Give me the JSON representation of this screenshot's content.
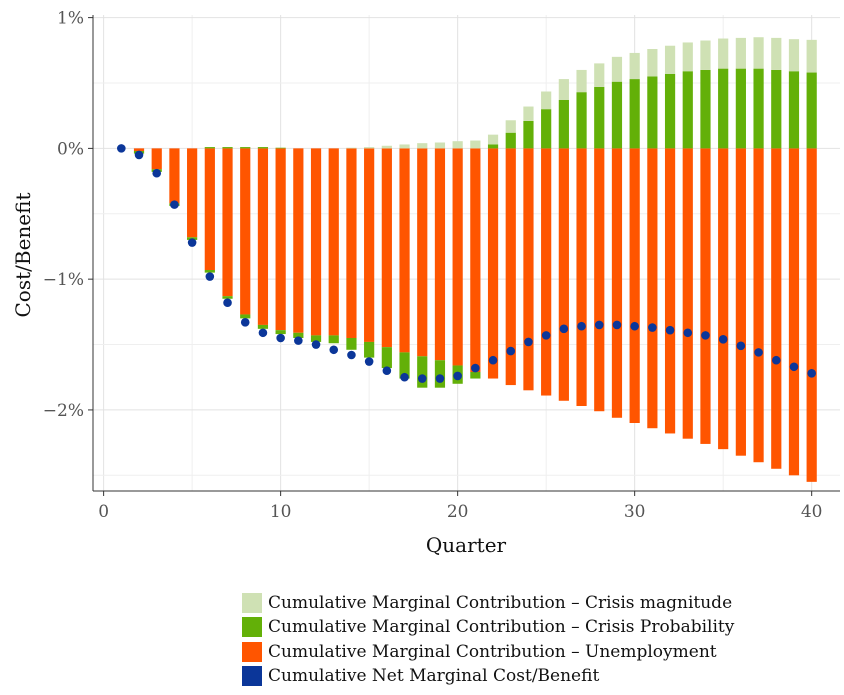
{
  "chart_data": {
    "type": "bar",
    "stacked": true,
    "title": "",
    "xlabel": "Quarter",
    "ylabel": "Cost/Benefit",
    "xlim": [
      -0.6,
      41.6
    ],
    "ylim": [
      -2.62,
      1.02
    ],
    "x_ticks": [
      0,
      10,
      20,
      30,
      40
    ],
    "y_ticks": [
      1,
      0,
      -1,
      -2
    ],
    "y_tick_labels": [
      "1%",
      "0%",
      "−1%",
      "−2%"
    ],
    "grid": true,
    "legend_position": "bottom",
    "x": [
      1,
      2,
      3,
      4,
      5,
      6,
      7,
      8,
      9,
      10,
      11,
      12,
      13,
      14,
      15,
      16,
      17,
      18,
      19,
      20,
      21,
      22,
      23,
      24,
      25,
      26,
      27,
      28,
      29,
      30,
      31,
      32,
      33,
      34,
      35,
      36,
      37,
      38,
      39,
      40
    ],
    "series": [
      {
        "name": "Cumulative Marginal Contribution – Crisis magnitude",
        "color": "#cfe1b4",
        "kind": "bar",
        "values": [
          0,
          0,
          0,
          0,
          0,
          0,
          0,
          0,
          0,
          0,
          0,
          0,
          0,
          0.005,
          0.01,
          0.02,
          0.03,
          0.04,
          0.045,
          0.055,
          0.06,
          0.075,
          0.095,
          0.11,
          0.135,
          0.16,
          0.17,
          0.18,
          0.19,
          0.2,
          0.21,
          0.215,
          0.22,
          0.225,
          0.23,
          0.235,
          0.24,
          0.245,
          0.245,
          0.25
        ]
      },
      {
        "name": "Cumulative Marginal Contribution – Crisis Probability",
        "color": "#63b008",
        "kind": "bar",
        "posValues": [
          0,
          0,
          0,
          0,
          0,
          0.01,
          0.01,
          0.01,
          0.01,
          0.005,
          0,
          0,
          0,
          0,
          0,
          0,
          0,
          0,
          0,
          0,
          0,
          0.03,
          0.12,
          0.21,
          0.3,
          0.37,
          0.43,
          0.47,
          0.51,
          0.53,
          0.55,
          0.57,
          0.59,
          0.6,
          0.61,
          0.61,
          0.61,
          0.6,
          0.59,
          0.58
        ],
        "negValues": [
          0,
          -0.02,
          -0.02,
          -0.02,
          -0.02,
          -0.02,
          -0.02,
          -0.03,
          -0.03,
          -0.03,
          -0.04,
          -0.05,
          -0.06,
          -0.09,
          -0.12,
          -0.16,
          -0.2,
          -0.24,
          -0.21,
          -0.14,
          -0.05,
          0,
          0,
          0,
          0,
          0,
          0,
          0,
          0,
          0,
          0,
          0,
          0,
          0,
          0,
          0,
          0,
          0,
          0,
          0
        ]
      },
      {
        "name": "Cumulative Marginal Contribution – Unemployment",
        "color": "#ff5500",
        "kind": "bar",
        "values": [
          0,
          -0.02,
          -0.16,
          -0.42,
          -0.68,
          -0.93,
          -1.13,
          -1.27,
          -1.35,
          -1.39,
          -1.41,
          -1.43,
          -1.43,
          -1.45,
          -1.48,
          -1.52,
          -1.56,
          -1.59,
          -1.62,
          -1.66,
          -1.71,
          -1.76,
          -1.81,
          -1.85,
          -1.89,
          -1.93,
          -1.97,
          -2.01,
          -2.06,
          -2.1,
          -2.14,
          -2.18,
          -2.22,
          -2.26,
          -2.3,
          -2.35,
          -2.4,
          -2.45,
          -2.5,
          -2.55
        ]
      },
      {
        "name": "Cumulative Net Marginal Cost/Benefit",
        "color": "#0b3699",
        "kind": "point",
        "values": [
          0,
          -0.05,
          -0.19,
          -0.43,
          -0.72,
          -0.98,
          -1.18,
          -1.33,
          -1.41,
          -1.45,
          -1.47,
          -1.5,
          -1.54,
          -1.58,
          -1.63,
          -1.7,
          -1.75,
          -1.76,
          -1.76,
          -1.74,
          -1.68,
          -1.62,
          -1.55,
          -1.48,
          -1.43,
          -1.38,
          -1.36,
          -1.35,
          -1.35,
          -1.36,
          -1.37,
          -1.39,
          -1.41,
          -1.43,
          -1.46,
          -1.51,
          -1.56,
          -1.62,
          -1.67,
          -1.72
        ]
      }
    ]
  }
}
